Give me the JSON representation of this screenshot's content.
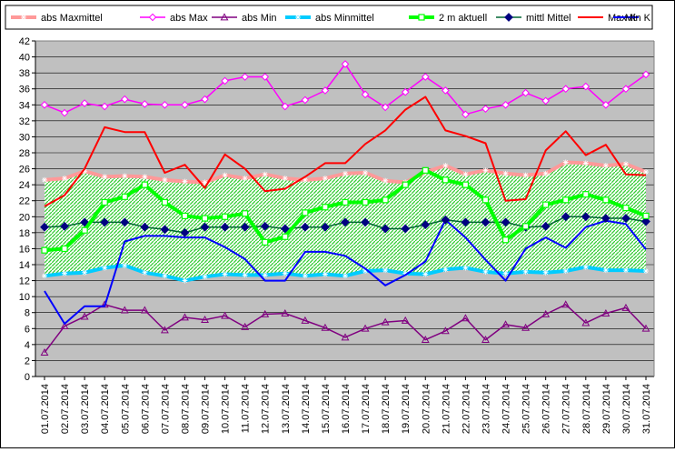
{
  "chart_data": {
    "type": "line",
    "title": "",
    "xlabel": "",
    "ylabel": "",
    "ylim": [
      0,
      42
    ],
    "ytick_step": 2,
    "grid": true,
    "legend_position": "top",
    "plot_background": "#c0c0c0",
    "categories": [
      "01.07.2014",
      "02.07.2014",
      "03.07.2014",
      "04.07.2014",
      "05.07.2014",
      "06.07.2014",
      "07.07.2014",
      "08.07.2014",
      "09.07.2014",
      "10.07.2014",
      "11.07.2014",
      "12.07.2014",
      "13.07.2014",
      "14.07.2014",
      "15.07.2014",
      "16.07.2014",
      "17.07.2014",
      "18.07.2014",
      "19.07.2014",
      "20.07.2014",
      "21.07.2014",
      "22.07.2014",
      "23.07.2014",
      "24.07.2014",
      "25.07.2014",
      "26.07.2014",
      "27.07.2014",
      "28.07.2014",
      "29.07.2014",
      "30.07.2014",
      "31.07.2014"
    ],
    "band": {
      "upper_series": "abs Maxmittel",
      "lower_series": "abs Minmittel",
      "fill": "hatched green/white"
    },
    "series": [
      {
        "name": "abs Maxmittel",
        "color": "#ff9999",
        "marker": "star",
        "width": 4,
        "values": [
          24.6,
          24.8,
          25.7,
          25.0,
          25.1,
          25.0,
          24.6,
          24.4,
          24.3,
          25.2,
          24.8,
          25.3,
          24.8,
          24.6,
          24.8,
          25.4,
          25.5,
          24.5,
          24.3,
          25.6,
          26.4,
          25.3,
          25.8,
          25.4,
          25.2,
          25.4,
          26.8,
          26.7,
          26.4,
          26.6,
          25.6
        ]
      },
      {
        "name": "abs Max",
        "color": "#ff00ff",
        "marker": "diamond-open",
        "width": 1.5,
        "values": [
          34.0,
          33.0,
          34.2,
          33.8,
          34.7,
          34.1,
          34.0,
          34.0,
          34.7,
          37.0,
          37.5,
          37.5,
          33.8,
          34.6,
          35.8,
          39.1,
          35.3,
          33.7,
          35.6,
          37.5,
          35.8,
          32.8,
          33.5,
          34.0,
          35.5,
          34.5,
          36.0,
          36.3,
          34.0,
          36.0,
          37.8
        ]
      },
      {
        "name": "abs Min",
        "color": "#800080",
        "marker": "triangle-open",
        "width": 1.5,
        "values": [
          3.0,
          6.3,
          7.5,
          9.0,
          8.3,
          8.3,
          5.8,
          7.4,
          7.1,
          7.6,
          6.2,
          7.8,
          7.9,
          7.0,
          6.1,
          4.9,
          6.0,
          6.8,
          7.0,
          4.6,
          5.7,
          7.3,
          4.6,
          6.5,
          6.1,
          7.8,
          9.0,
          6.7,
          7.9,
          8.6,
          6.0
        ]
      },
      {
        "name": "abs Minmittel",
        "color": "#00ccff",
        "marker": "star",
        "width": 4,
        "values": [
          12.6,
          12.9,
          13.0,
          13.6,
          13.9,
          13.0,
          12.6,
          12.0,
          12.5,
          12.8,
          12.7,
          12.7,
          12.9,
          12.6,
          12.8,
          12.6,
          13.2,
          13.3,
          12.9,
          12.8,
          13.4,
          13.6,
          13.1,
          12.9,
          13.1,
          13.0,
          13.2,
          13.7,
          13.3,
          13.3,
          13.2
        ]
      },
      {
        "name": "2 m aktuell",
        "color": "#00ff00",
        "marker": "square-open",
        "width": 4,
        "values": [
          15.8,
          16.0,
          18.3,
          21.8,
          22.5,
          24.0,
          21.8,
          20.1,
          19.8,
          20.0,
          20.4,
          16.8,
          17.5,
          20.5,
          21.2,
          21.8,
          21.8,
          22.1,
          24.0,
          25.8,
          24.6,
          24.0,
          22.1,
          17.1,
          18.8,
          21.5,
          22.1,
          22.8,
          22.1,
          21.1,
          20.1
        ]
      },
      {
        "name": "mittl Mittel",
        "color": "#006633",
        "marker": "diamond-filled",
        "marker_color": "#000080",
        "width": 1.5,
        "values": [
          18.7,
          18.8,
          19.3,
          19.3,
          19.3,
          18.7,
          18.4,
          18.0,
          18.7,
          18.7,
          18.7,
          18.8,
          18.5,
          18.7,
          18.7,
          19.3,
          19.3,
          18.5,
          18.5,
          19.0,
          19.6,
          19.3,
          19.3,
          19.3,
          18.7,
          18.8,
          20.0,
          20.0,
          19.8,
          19.8,
          19.4
        ]
      },
      {
        "name": "Max K",
        "color": "#ff0000",
        "marker": "none",
        "width": 2,
        "values": [
          21.3,
          22.7,
          26.0,
          31.2,
          30.6,
          30.6,
          25.5,
          26.5,
          23.6,
          27.8,
          26.0,
          23.2,
          23.5,
          25.0,
          26.7,
          26.7,
          29.1,
          30.8,
          33.4,
          35.0,
          30.8,
          30.1,
          29.2,
          22.0,
          22.2,
          28.3,
          30.7,
          27.7,
          29.0,
          25.3,
          25.2
        ]
      },
      {
        "name": "Min K",
        "color": "#0000ff",
        "marker": "none",
        "width": 2,
        "values": [
          10.7,
          6.6,
          8.8,
          8.8,
          16.9,
          17.6,
          17.6,
          17.4,
          17.4,
          16.2,
          14.7,
          12.0,
          12.0,
          15.6,
          15.6,
          15.1,
          13.5,
          11.4,
          12.7,
          14.4,
          19.6,
          17.4,
          14.6,
          12.0,
          16.0,
          17.4,
          16.1,
          18.7,
          19.5,
          19.1,
          15.9
        ]
      }
    ]
  }
}
